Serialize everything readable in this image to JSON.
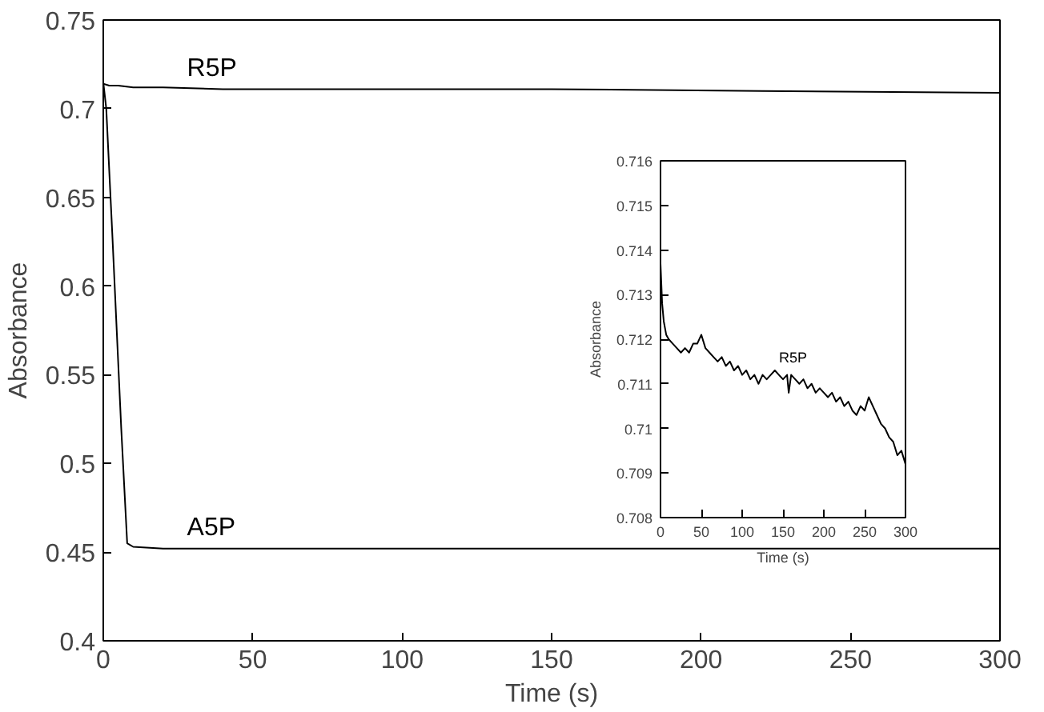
{
  "chart_data": [
    {
      "type": "line",
      "xlabel": "Time (s)",
      "ylabel": "Absorbance",
      "xlim": [
        0,
        300
      ],
      "ylim": [
        0.4,
        0.75
      ],
      "xticks": [
        0,
        50,
        100,
        150,
        200,
        250,
        300
      ],
      "yticks": [
        0.4,
        0.45,
        0.5,
        0.55,
        0.6,
        0.65,
        0.7,
        0.75
      ],
      "grid": false,
      "legend": false,
      "series": [
        {
          "name": "R5P",
          "color": "#000000",
          "x": [
            0,
            2,
            5,
            10,
            20,
            40,
            80,
            150,
            220,
            300
          ],
          "values": [
            0.714,
            0.713,
            0.713,
            0.712,
            0.712,
            0.711,
            0.711,
            0.711,
            0.71,
            0.709
          ]
        },
        {
          "name": "A5P",
          "color": "#000000",
          "x": [
            0,
            1,
            3,
            6,
            8,
            10,
            20,
            50,
            100,
            200,
            300
          ],
          "values": [
            0.715,
            0.7,
            0.63,
            0.52,
            0.455,
            0.453,
            0.452,
            0.452,
            0.452,
            0.452,
            0.452
          ]
        }
      ]
    },
    {
      "type": "line",
      "xlabel": "Time (s)",
      "ylabel": "Absorbance",
      "xlim": [
        0,
        300
      ],
      "ylim": [
        0.708,
        0.716
      ],
      "xticks": [
        0,
        50,
        100,
        150,
        200,
        250,
        300
      ],
      "yticks": [
        0.708,
        0.709,
        0.71,
        0.711,
        0.712,
        0.713,
        0.714,
        0.715,
        0.716
      ],
      "grid": false,
      "legend": false,
      "series": [
        {
          "name": "R5P",
          "color": "#000000",
          "x": [
            0,
            2,
            4,
            7,
            10,
            15,
            20,
            25,
            30,
            35,
            40,
            45,
            50,
            55,
            60,
            65,
            70,
            75,
            80,
            85,
            90,
            95,
            100,
            105,
            110,
            115,
            120,
            125,
            130,
            135,
            140,
            145,
            150,
            155,
            157,
            160,
            165,
            170,
            175,
            180,
            185,
            190,
            195,
            200,
            205,
            210,
            215,
            220,
            225,
            230,
            235,
            240,
            245,
            250,
            255,
            260,
            265,
            270,
            275,
            280,
            285,
            290,
            295,
            300
          ],
          "values": [
            0.7137,
            0.7128,
            0.7124,
            0.7121,
            0.712,
            0.7119,
            0.7118,
            0.7117,
            0.7118,
            0.7117,
            0.7119,
            0.7119,
            0.7121,
            0.7118,
            0.7117,
            0.7116,
            0.7115,
            0.7116,
            0.7114,
            0.7115,
            0.7113,
            0.7114,
            0.7112,
            0.7113,
            0.7111,
            0.7112,
            0.711,
            0.7112,
            0.7111,
            0.7112,
            0.7113,
            0.7112,
            0.7111,
            0.7112,
            0.7108,
            0.7112,
            0.7111,
            0.711,
            0.7111,
            0.7109,
            0.711,
            0.7108,
            0.7109,
            0.7108,
            0.7107,
            0.7108,
            0.7106,
            0.7107,
            0.7105,
            0.7106,
            0.7104,
            0.7103,
            0.7105,
            0.7104,
            0.7107,
            0.7105,
            0.7103,
            0.7101,
            0.71,
            0.7098,
            0.7097,
            0.7094,
            0.7095,
            0.7092
          ]
        }
      ]
    }
  ]
}
